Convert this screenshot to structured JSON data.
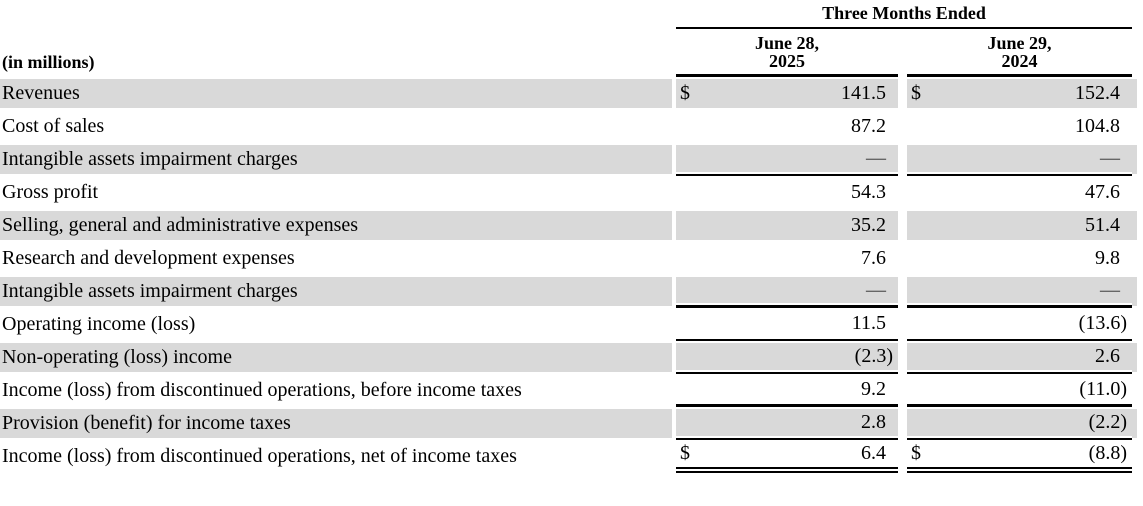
{
  "table": {
    "units_label": "(in millions)",
    "period_header": "Three Months Ended",
    "columns": [
      {
        "line1": "June 28,",
        "line2": "2025"
      },
      {
        "line1": "June 29,",
        "line2": "2024"
      }
    ],
    "rows": [
      {
        "label": "Revenues",
        "currency": "$",
        "values": [
          "141.5",
          "152.4"
        ],
        "shade": true,
        "border": "none"
      },
      {
        "label": "Cost of sales",
        "currency": "",
        "values": [
          "87.2",
          "104.8"
        ],
        "shade": false,
        "border": "none"
      },
      {
        "label": "Intangible assets impairment charges",
        "currency": "",
        "values": [
          "—",
          "—"
        ],
        "shade": true,
        "border": "thin"
      },
      {
        "label": "Gross profit",
        "currency": "",
        "values": [
          "54.3",
          "47.6"
        ],
        "shade": false,
        "border": "none"
      },
      {
        "label": "Selling, general and administrative expenses",
        "currency": "",
        "values": [
          "35.2",
          "51.4"
        ],
        "shade": true,
        "border": "none"
      },
      {
        "label": "Research and development expenses",
        "currency": "",
        "values": [
          "7.6",
          "9.8"
        ],
        "shade": false,
        "border": "none"
      },
      {
        "label": "Intangible assets impairment charges",
        "currency": "",
        "values": [
          "—",
          "—"
        ],
        "shade": true,
        "border": "thick"
      },
      {
        "label": "Operating income (loss)",
        "currency": "",
        "values": [
          "11.5",
          "(13.6)"
        ],
        "shade": false,
        "border": "thin"
      },
      {
        "label": "Non-operating (loss) income",
        "currency": "",
        "values": [
          "(2.3)",
          "2.6"
        ],
        "shade": true,
        "border": "thin"
      },
      {
        "label": "Income (loss) from discontinued operations, before income taxes",
        "currency": "",
        "values": [
          "9.2",
          "(11.0)"
        ],
        "shade": false,
        "border": "thick"
      },
      {
        "label": "Provision (benefit) for income taxes",
        "currency": "",
        "values": [
          "2.8",
          "(2.2)"
        ],
        "shade": true,
        "border": "thin"
      },
      {
        "label": "Income (loss) from discontinued operations, net of income taxes",
        "currency": "$",
        "values": [
          "6.4",
          "(8.8)"
        ],
        "shade": false,
        "border": "double"
      }
    ],
    "colors": {
      "row_shade": "#d9d9d9",
      "rule": "#000000",
      "dash": "#666666"
    }
  }
}
